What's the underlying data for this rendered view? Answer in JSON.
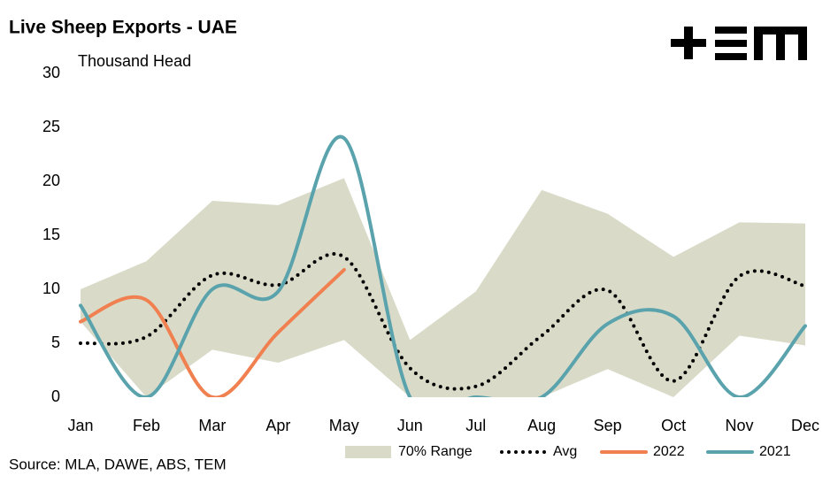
{
  "chart_data": {
    "type": "line",
    "title": "Live Sheep Exports - UAE",
    "y_label": "Thousand Head",
    "source": "Source: MLA, DAWE, ABS, TEM",
    "categories": [
      "Jan",
      "Feb",
      "Mar",
      "Apr",
      "May",
      "Jun",
      "Jul",
      "Aug",
      "Sep",
      "Oct",
      "Nov",
      "Dec"
    ],
    "ylim": [
      0,
      30
    ],
    "yticks": [
      0,
      5,
      10,
      15,
      20,
      25,
      30
    ],
    "range": {
      "name": "70% Range",
      "color": "#d9dbc8",
      "upper": [
        10,
        12.6,
        18.2,
        17.8,
        20.3,
        5.3,
        9.8,
        19.2,
        17,
        13,
        16.2,
        16.1
      ],
      "lower": [
        7,
        0,
        4.4,
        3.2,
        5.3,
        0,
        0,
        0,
        2.6,
        0,
        5.7,
        4.8
      ]
    },
    "series": [
      {
        "name": "Avg",
        "color": "#000000",
        "style": "dotted",
        "values": [
          5,
          5.6,
          11.3,
          10.4,
          13,
          2.7,
          1,
          5.7,
          9.9,
          1.5,
          11.2,
          10.3
        ]
      },
      {
        "name": "2022",
        "color": "#f08050",
        "style": "solid",
        "values": [
          7,
          9,
          0,
          6,
          11.8,
          null,
          null,
          null,
          null,
          null,
          null,
          null
        ]
      },
      {
        "name": "2021",
        "color": "#5aa3ad",
        "style": "solid",
        "values": [
          8.5,
          0,
          10,
          9.8,
          24,
          0,
          0,
          0,
          6.8,
          7.5,
          0,
          6.6
        ]
      }
    ]
  }
}
